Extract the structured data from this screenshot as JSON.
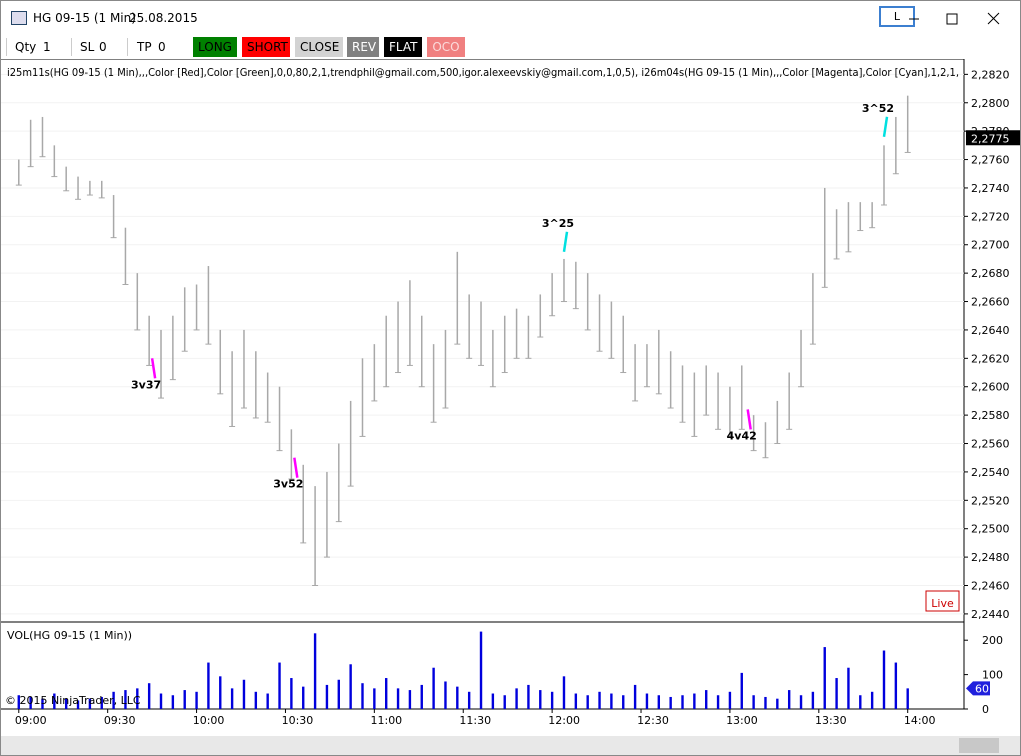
{
  "window": {
    "title": "HG 09-15 (1 Min)",
    "date": "25.08.2015",
    "button": "L"
  },
  "toolbar": {
    "qty_label": "Qty",
    "qty": 1,
    "sl_label": "SL",
    "sl": 0,
    "tp_label": "TP",
    "tp": 0,
    "buttons": [
      "LONG",
      "SHORT",
      "CLOSE",
      "REV",
      "FLAT",
      "OCO"
    ]
  },
  "chart_data": [
    {
      "type": "hl-bar",
      "indicator_text": "i25m11s(HG 09-15 (1 Min),,,Color [Red],Color [Green],0,0,80,2,1,trendphil@gmail.com,500,igor.alexeevskiy@gmail.com,1,0,5), i26m04s(HG 09-15 (1 Min),,,Color [Magenta],Color [Cyan],1,2,1,",
      "x": [
        "09:00",
        "09:04",
        "09:08",
        "09:12",
        "09:16",
        "09:20",
        "09:24",
        "09:28",
        "09:32",
        "09:36",
        "09:40",
        "09:44",
        "09:48",
        "09:52",
        "09:56",
        "10:00",
        "10:04",
        "10:08",
        "10:12",
        "10:16",
        "10:20",
        "10:24",
        "10:28",
        "10:32",
        "10:36",
        "10:40",
        "10:44",
        "10:48",
        "10:52",
        "10:56",
        "11:00",
        "11:04",
        "11:08",
        "11:12",
        "11:16",
        "11:20",
        "11:24",
        "11:28",
        "11:32",
        "11:36",
        "11:40",
        "11:44",
        "11:48",
        "11:52",
        "11:56",
        "12:00",
        "12:04",
        "12:08",
        "12:12",
        "12:16",
        "12:20",
        "12:24",
        "12:28",
        "12:32",
        "12:36",
        "12:40",
        "12:44",
        "12:48",
        "12:52",
        "12:56",
        "13:00",
        "13:04",
        "13:08",
        "13:12",
        "13:16",
        "13:20",
        "13:24",
        "13:28",
        "13:32",
        "13:36",
        "13:40",
        "13:44",
        "13:48",
        "13:52",
        "13:56",
        "14:00"
      ],
      "high": [
        2.276,
        2.2788,
        2.279,
        2.277,
        2.2755,
        2.2748,
        2.2745,
        2.2745,
        2.2735,
        2.2712,
        2.268,
        2.265,
        2.264,
        2.265,
        2.267,
        2.2672,
        2.2685,
        2.264,
        2.2625,
        2.264,
        2.2625,
        2.261,
        2.26,
        2.257,
        2.2545,
        2.253,
        2.254,
        2.256,
        2.259,
        2.262,
        2.263,
        2.265,
        2.266,
        2.2675,
        2.265,
        2.263,
        2.264,
        2.2695,
        2.2665,
        2.266,
        2.264,
        2.265,
        2.2655,
        2.265,
        2.2665,
        2.268,
        2.269,
        2.2688,
        2.268,
        2.2665,
        2.266,
        2.265,
        2.263,
        2.263,
        2.264,
        2.2625,
        2.2615,
        2.261,
        2.2615,
        2.261,
        2.26,
        2.2615,
        2.258,
        2.2575,
        2.259,
        2.261,
        2.264,
        2.268,
        2.274,
        2.2725,
        2.273,
        2.273,
        2.273,
        2.277,
        2.279,
        2.2805
      ],
      "low": [
        2.2742,
        2.2755,
        2.2762,
        2.2748,
        2.2738,
        2.2732,
        2.2735,
        2.2733,
        2.2705,
        2.2672,
        2.264,
        2.2615,
        2.2592,
        2.2605,
        2.2625,
        2.264,
        2.263,
        2.2595,
        2.2572,
        2.2585,
        2.2578,
        2.2575,
        2.2555,
        2.2535,
        2.249,
        2.246,
        2.248,
        2.2505,
        2.253,
        2.2565,
        2.259,
        2.26,
        2.261,
        2.2615,
        2.26,
        2.2575,
        2.2585,
        2.263,
        2.262,
        2.2615,
        2.26,
        2.261,
        2.262,
        2.262,
        2.2635,
        2.265,
        2.266,
        2.2655,
        2.264,
        2.2625,
        2.262,
        2.261,
        2.259,
        2.26,
        2.2595,
        2.2585,
        2.2575,
        2.2565,
        2.258,
        2.257,
        2.2565,
        2.257,
        2.2555,
        2.255,
        2.256,
        2.257,
        2.26,
        2.263,
        2.267,
        2.269,
        2.2695,
        2.271,
        2.2712,
        2.2728,
        2.275,
        2.2765
      ],
      "color": "#a8a8a8",
      "xlim": [
        "08:54",
        "14:19"
      ],
      "ylim": [
        2.2435,
        2.2828
      ],
      "yticks": [
        {
          "value": 2.244,
          "label": "2,2440"
        },
        {
          "value": 2.246,
          "label": "2,2460"
        },
        {
          "value": 2.248,
          "label": "2,2480"
        },
        {
          "value": 2.25,
          "label": "2,2500"
        },
        {
          "value": 2.252,
          "label": "2,2520"
        },
        {
          "value": 2.254,
          "label": "2,2540"
        },
        {
          "value": 2.256,
          "label": "2,2560"
        },
        {
          "value": 2.258,
          "label": "2,2580"
        },
        {
          "value": 2.26,
          "label": "2,2600"
        },
        {
          "value": 2.262,
          "label": "2,2620"
        },
        {
          "value": 2.264,
          "label": "2,2640"
        },
        {
          "value": 2.266,
          "label": "2,2660"
        },
        {
          "value": 2.268,
          "label": "2,2680"
        },
        {
          "value": 2.27,
          "label": "2,2700"
        },
        {
          "value": 2.272,
          "label": "2,2720"
        },
        {
          "value": 2.274,
          "label": "2,2740"
        },
        {
          "value": 2.276,
          "label": "2,2760"
        },
        {
          "value": 2.278,
          "label": "2,2780"
        },
        {
          "value": 2.28,
          "label": "2,2800"
        },
        {
          "value": 2.282,
          "label": "2,2820"
        }
      ],
      "grid": true,
      "last_price": {
        "value": 2.2775,
        "label": "2,2775"
      },
      "status": "Live",
      "annotations": [
        {
          "text": "3v37",
          "x": "09:45",
          "y": 2.262,
          "color": "#ff00ff"
        },
        {
          "text": "3v52",
          "x": "10:33",
          "y": 2.255,
          "color": "#ff00ff"
        },
        {
          "text": "3^25",
          "x": "12:04",
          "y": 2.2695,
          "color": "#00e0e0"
        },
        {
          "text": "4v42",
          "x": "13:06",
          "y": 2.2584,
          "color": "#ff00ff"
        },
        {
          "text": "3^52",
          "x": "13:52",
          "y": 2.2776,
          "color": "#00e0e0"
        }
      ]
    },
    {
      "type": "bar",
      "title": "VOL(HG 09-15 (1 Min))",
      "x": [
        "09:00",
        "09:04",
        "09:08",
        "09:12",
        "09:16",
        "09:20",
        "09:24",
        "09:28",
        "09:32",
        "09:36",
        "09:40",
        "09:44",
        "09:48",
        "09:52",
        "09:56",
        "10:00",
        "10:04",
        "10:08",
        "10:12",
        "10:16",
        "10:20",
        "10:24",
        "10:28",
        "10:32",
        "10:36",
        "10:40",
        "10:44",
        "10:48",
        "10:52",
        "10:56",
        "11:00",
        "11:04",
        "11:08",
        "11:12",
        "11:16",
        "11:20",
        "11:24",
        "11:28",
        "11:32",
        "11:36",
        "11:40",
        "11:44",
        "11:48",
        "11:52",
        "11:56",
        "12:00",
        "12:04",
        "12:08",
        "12:12",
        "12:16",
        "12:20",
        "12:24",
        "12:28",
        "12:32",
        "12:36",
        "12:40",
        "12:44",
        "12:48",
        "12:52",
        "12:56",
        "13:00",
        "13:04",
        "13:08",
        "13:12",
        "13:16",
        "13:20",
        "13:24",
        "13:28",
        "13:32",
        "13:36",
        "13:40",
        "13:44",
        "13:48",
        "13:52",
        "13:56",
        "14:00"
      ],
      "values": [
        40,
        35,
        30,
        45,
        30,
        25,
        30,
        35,
        50,
        55,
        60,
        75,
        45,
        40,
        55,
        50,
        135,
        95,
        60,
        85,
        50,
        45,
        135,
        90,
        65,
        220,
        70,
        85,
        130,
        75,
        60,
        90,
        60,
        55,
        70,
        120,
        80,
        65,
        50,
        225,
        45,
        40,
        60,
        70,
        55,
        50,
        95,
        45,
        40,
        50,
        45,
        40,
        70,
        45,
        40,
        35,
        40,
        45,
        55,
        40,
        50,
        105,
        40,
        35,
        30,
        55,
        40,
        50,
        180,
        90,
        120,
        40,
        50,
        170,
        135,
        60
      ],
      "color": "#0000dd",
      "xlim": [
        "08:54",
        "14:19"
      ],
      "ylim": [
        0,
        250
      ],
      "yticks": [
        0,
        100,
        200
      ],
      "xticks": [
        "09:00",
        "09:30",
        "10:00",
        "10:30",
        "11:00",
        "11:30",
        "12:00",
        "12:30",
        "13:00",
        "13:30",
        "14:00"
      ],
      "copyright": "© 2015 NinjaTrader, LLC"
    }
  ]
}
